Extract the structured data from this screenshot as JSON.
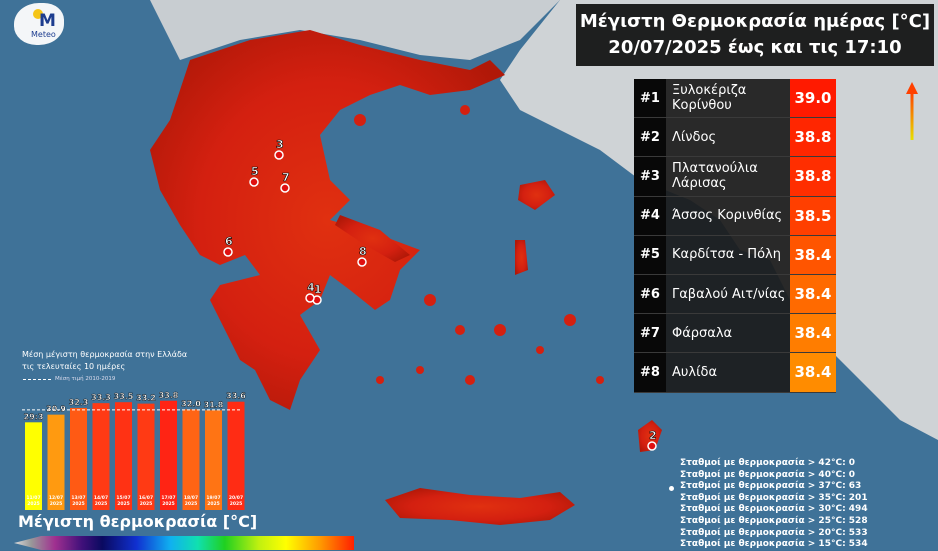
{
  "brand": {
    "logo_text": "Meteo"
  },
  "header": {
    "title_line1": "Μέγιστη Θερμοκρασία ημέρας [°C]",
    "title_line2": "20/07/2025 έως και τις 17:10"
  },
  "ranking": [
    {
      "rank": "#1",
      "station": "Ξυλοκέριζα Κορίνθου",
      "value": "39.0",
      "color": "#ff1a00"
    },
    {
      "rank": "#2",
      "station": "Λίνδος",
      "value": "38.8",
      "color": "#ff2600"
    },
    {
      "rank": "#3",
      "station": "Πλατανούλια Λάρισας",
      "value": "38.8",
      "color": "#ff2e00"
    },
    {
      "rank": "#4",
      "station": "Άσσος Κορινθίας",
      "value": "38.5",
      "color": "#ff3f00"
    },
    {
      "rank": "#5",
      "station": "Καρδίτσα - Πόλη",
      "value": "38.4",
      "color": "#ff5500"
    },
    {
      "rank": "#6",
      "station": "Γαβαλού Αιτ/νίας",
      "value": "38.4",
      "color": "#ff6a00"
    },
    {
      "rank": "#7",
      "station": "Φάρσαλα",
      "value": "38.4",
      "color": "#ff7d00"
    },
    {
      "rank": "#8",
      "station": "Αυλίδα",
      "value": "38.4",
      "color": "#ff8c00"
    }
  ],
  "map_markers": [
    "1",
    "2",
    "3",
    "4",
    "5",
    "6",
    "7",
    "8"
  ],
  "stats": [
    "Σταθμοί με θερμοκρασία > 42°C: 0",
    "Σταθμοί με θερμοκρασία > 40°C: 0",
    "Σταθμοί με θερμοκρασία > 37°C: 63",
    "Σταθμοί με θερμοκρασία > 35°C: 201",
    "Σταθμοί με θερμοκρασία > 30°C: 494",
    "Σταθμοί με θερμοκρασία > 25°C: 528",
    "Σταθμοί με θερμοκρασία > 20°C: 533",
    "Σταθμοί με θερμοκρασία > 15°C: 534"
  ],
  "chart_data": {
    "type": "bar",
    "title": "Μέση μέγιστη θερμοκρασία στην Ελλάδα τις τελευταίες 10 ημέρες",
    "title_line1": "Μέση μέγιστη θερμοκρασία στην Ελλάδα",
    "title_line2": "τις τελευταίες 10 ημέρες",
    "reference_label": "Μέση τιμή 2010-2019",
    "reference_value": 31.9,
    "categories": [
      "11/07 2025",
      "12/07 2025",
      "13/07 2025",
      "14/07 2025",
      "15/07 2025",
      "16/07 2025",
      "17/07 2025",
      "18/07 2025",
      "19/07 2025",
      "20/07 2025"
    ],
    "values": [
      29.3,
      30.9,
      32.3,
      33.3,
      33.5,
      33.2,
      33.8,
      32.0,
      31.8,
      33.6
    ],
    "value_labels": [
      "29:3",
      "30.9",
      "32.3",
      "33.3",
      "33.5",
      "33.2",
      "33.8",
      "32.0",
      "31.8",
      "33.6"
    ],
    "colors": [
      "#ffff00",
      "#ff9a10",
      "#ff5a14",
      "#ff3a14",
      "#ff3214",
      "#ff3a14",
      "#ff2414",
      "#ff6414",
      "#ff7414",
      "#ff2c14"
    ],
    "ylim": [
      11,
      35
    ]
  },
  "colorbar": {
    "label": "Μέγιστη θερμοκρασία [°C]"
  }
}
